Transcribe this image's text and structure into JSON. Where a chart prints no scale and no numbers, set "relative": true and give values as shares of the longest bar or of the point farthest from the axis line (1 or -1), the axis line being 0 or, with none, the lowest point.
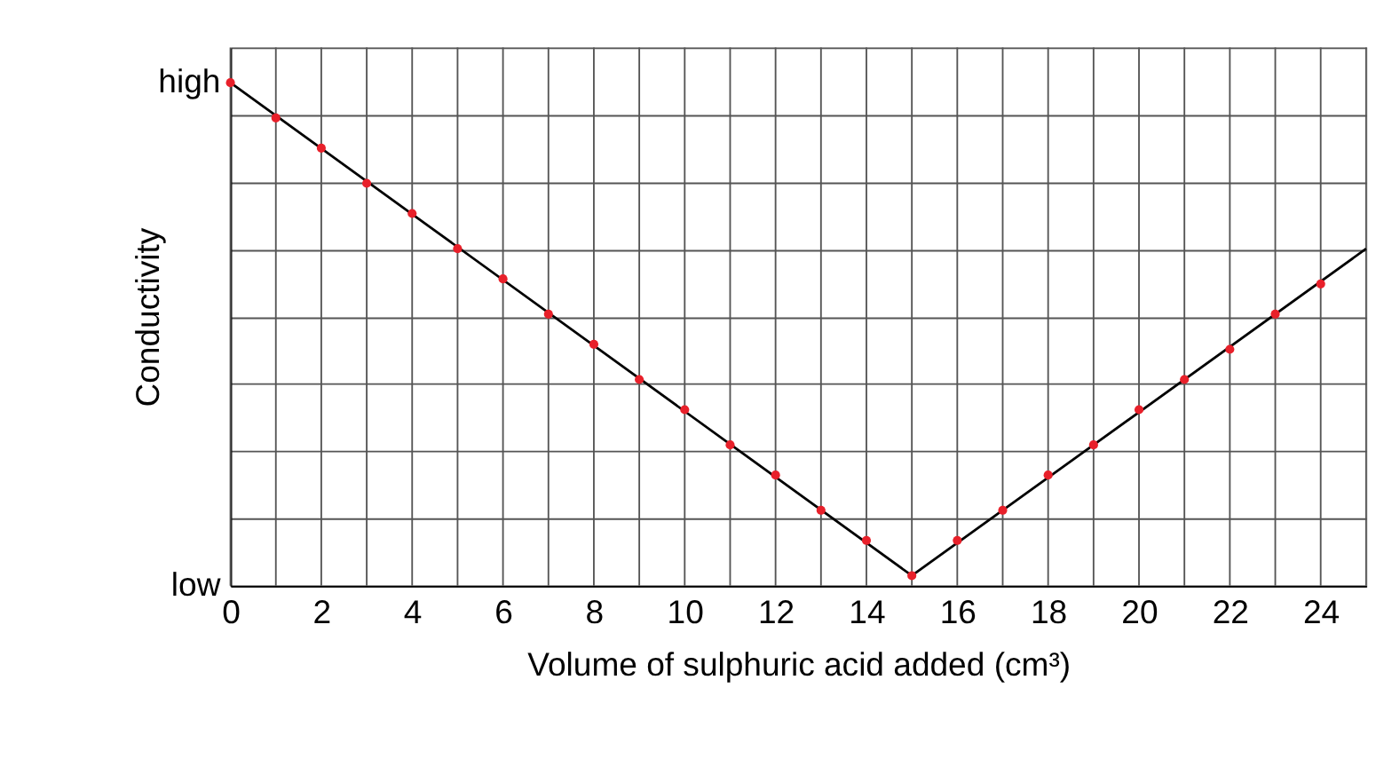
{
  "chart_data": {
    "type": "line",
    "relative": true,
    "xlabel": "Volume of sulphuric acid added (cm³)",
    "ylabel": "Conductivity",
    "annotations": [
      "high",
      "low"
    ],
    "xlim": [
      0,
      25
    ],
    "xticks": [
      0,
      {
        "value": 1,
        "label": null
      },
      2,
      {
        "value": 3,
        "label": null
      },
      4,
      {
        "value": 5,
        "label": null
      },
      6,
      {
        "value": 7,
        "label": null
      },
      8,
      {
        "value": 9,
        "label": null
      },
      10,
      {
        "value": 11,
        "label": null
      },
      12,
      {
        "value": 13,
        "label": null
      },
      14,
      {
        "value": 15,
        "label": null
      },
      16,
      {
        "value": 17,
        "label": null
      },
      18,
      {
        "value": 19,
        "label": null
      },
      20,
      {
        "value": 21,
        "label": null
      },
      22,
      {
        "value": 23,
        "label": null
      },
      24,
      {
        "value": 25,
        "label": null
      }
    ],
    "grid": true,
    "series": [
      {
        "color": "#000000",
        "marker": "none",
        "line_style": "solid",
        "x": [
          0,
          15,
          25
        ],
        "values": [
          1,
          0.02,
          0.67
        ]
      },
      {
        "type": "scatter",
        "color": "#e8202a",
        "marker": "circle",
        "x": [
          0,
          1,
          2,
          3,
          4,
          5,
          6,
          7,
          8,
          9,
          10,
          11,
          12,
          13,
          14,
          15,
          16,
          17,
          18,
          19,
          20,
          21,
          22,
          23,
          24
        ],
        "values": [
          1,
          0.93,
          0.87,
          0.8,
          0.74,
          0.67,
          0.61,
          0.54,
          0.48,
          0.41,
          0.35,
          0.28,
          0.22,
          0.15,
          0.09,
          0.02,
          0.09,
          0.15,
          0.22,
          0.28,
          0.35,
          0.41,
          0.47,
          0.54,
          0.6
        ]
      }
    ]
  }
}
